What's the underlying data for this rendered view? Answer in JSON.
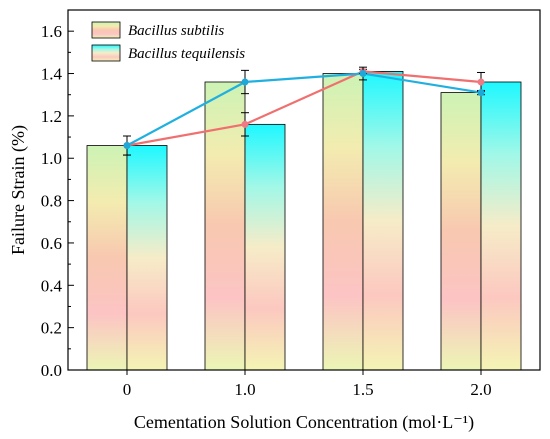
{
  "chart_data": {
    "type": "bar",
    "title": "",
    "xlabel": "Cementation Solution Concentration (mol·L⁻¹)",
    "ylabel": "Failure Strain (%)",
    "categories": [
      "0",
      "1.0",
      "1.5",
      "2.0"
    ],
    "ylim": [
      0,
      1.7
    ],
    "yticks": [
      "0.0",
      "0.2",
      "0.4",
      "0.6",
      "0.8",
      "1.0",
      "1.2",
      "1.4",
      "1.6"
    ],
    "grid": false,
    "legend_position": "top-left",
    "series": [
      {
        "name": "Bacillus subtilis",
        "values": [
          1.06,
          1.36,
          1.4,
          1.31
        ],
        "errors": [
          0.045,
          0.055,
          0.03,
          0.01
        ],
        "line_values": [
          1.06,
          1.16,
          1.41,
          1.36
        ],
        "line_errors": [
          0.045,
          0.055,
          0.01,
          0.045
        ],
        "line_color": "#f07070",
        "marker_color": "#f07a84",
        "bar_gradient": [
          "#ccf3b5",
          "#f3ecb0",
          "#f8c8b0",
          "#fcc4c4",
          "#ecf5b5"
        ]
      },
      {
        "name": "Bacillus tequilensis",
        "values": [
          1.06,
          1.16,
          1.41,
          1.36
        ],
        "errors": [
          0.045,
          0.055,
          0.01,
          0.045
        ],
        "line_values": [
          1.06,
          1.36,
          1.4,
          1.31
        ],
        "line_errors": [
          0.045,
          0.055,
          0.03,
          0.01
        ],
        "line_color": "#20b0e0",
        "marker_color": "#1ea8d8",
        "bar_gradient": [
          "#1ef8ff",
          "#a0f8e8",
          "#f6ecc8",
          "#fcc8c0",
          "#f4f4b4"
        ]
      }
    ]
  }
}
